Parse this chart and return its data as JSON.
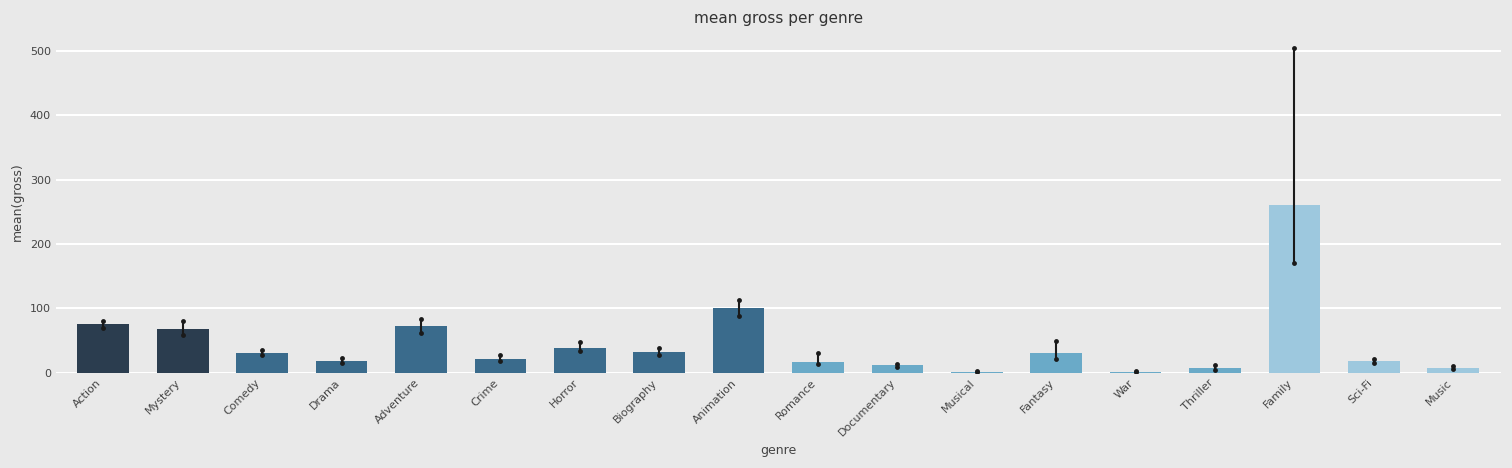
{
  "title": "mean gross per genre",
  "xlabel": "genre",
  "ylabel": "mean(gross)",
  "categories": [
    "Action",
    "Mystery",
    "Comedy",
    "Drama",
    "Adventure",
    "Crime",
    "Horror",
    "Biography",
    "Animation",
    "Romance",
    "Documentary",
    "Musical",
    "Fantasy",
    "War",
    "Thriller",
    "Family",
    "Sci-Fi",
    "Music"
  ],
  "values": [
    75,
    68,
    30,
    18,
    72,
    22,
    38,
    32,
    100,
    16,
    12,
    1,
    30,
    1,
    8,
    260,
    18,
    8
  ],
  "ci_low": [
    70,
    58,
    27,
    15,
    62,
    19,
    33,
    27,
    88,
    13,
    9,
    0.5,
    22,
    0.5,
    5,
    170,
    15,
    6
  ],
  "ci_high": [
    80,
    80,
    35,
    23,
    83,
    27,
    47,
    38,
    113,
    31,
    14,
    2,
    50,
    2,
    12,
    505,
    21,
    10
  ],
  "bar_colors": [
    "#2b3d4f",
    "#2b3d4f",
    "#3a6b8c",
    "#3a6b8c",
    "#3a6b8c",
    "#3a6b8c",
    "#3a6b8c",
    "#3a6b8c",
    "#3a6b8c",
    "#6aaac8",
    "#6aaac8",
    "#6aaac8",
    "#6aaac8",
    "#6aaac8",
    "#6aaac8",
    "#9dc8de",
    "#9dc8de",
    "#9dc8de"
  ],
  "bg_color": "#e9e9e9",
  "grid_color": "#ffffff",
  "ylim": [
    0,
    530
  ],
  "yticks": [
    0,
    100,
    200,
    300,
    400,
    500
  ],
  "bar_width": 0.65,
  "title_fontsize": 11,
  "label_fontsize": 9,
  "tick_fontsize": 8
}
